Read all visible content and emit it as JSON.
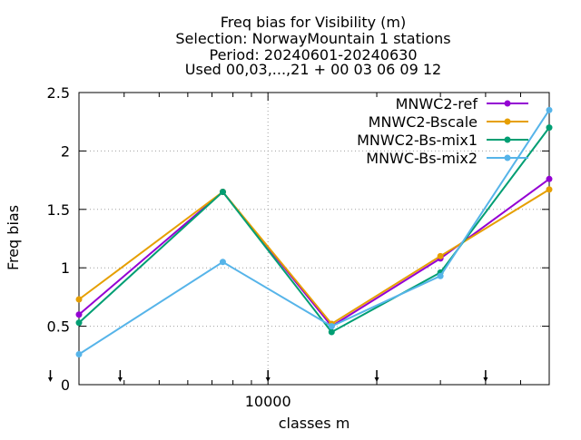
{
  "chart_data": {
    "type": "line",
    "title_lines": [
      "Freq bias  for Visibility (m)",
      "Selection: NorwayMountain      1 stations",
      "Period: 20240601-20240630",
      "Used 00,03,...,21 + 00 03 06 09 12"
    ],
    "xlabel": "classes m",
    "ylabel": "Freq bias",
    "x_scale": "log",
    "xlim": [
      3000,
      60000
    ],
    "ylim": [
      0,
      2.5
    ],
    "y_ticks": [
      "0",
      "0.5",
      "1",
      "1.5",
      "2",
      "2.5"
    ],
    "x_tick_labels": [
      {
        "value": 10000,
        "label": "10000"
      }
    ],
    "x_minor_ticks": [
      3000,
      4000,
      5000,
      6000,
      7000,
      8000,
      9000,
      20000,
      30000,
      40000,
      50000
    ],
    "x_arrow_marks": [
      2500,
      3900,
      10000,
      20000,
      40000
    ],
    "grid": true,
    "legend_position": "top-right",
    "x": [
      3000,
      7500,
      15000,
      30000,
      60000
    ],
    "series": [
      {
        "name": "MNWC2-ref",
        "color": "#9400d3",
        "values": [
          0.6,
          1.65,
          0.5,
          1.08,
          1.76
        ]
      },
      {
        "name": "MNWC2-Bscale",
        "color": "#e69f00",
        "values": [
          0.73,
          1.65,
          0.52,
          1.1,
          1.67
        ]
      },
      {
        "name": "MNWC2-Bs-mix1",
        "color": "#009e73",
        "values": [
          0.53,
          1.65,
          0.45,
          0.96,
          2.2
        ]
      },
      {
        "name": "MNWC-Bs-mix2",
        "color": "#56b4e9",
        "values": [
          0.26,
          1.05,
          0.5,
          0.93,
          2.35
        ]
      }
    ]
  }
}
